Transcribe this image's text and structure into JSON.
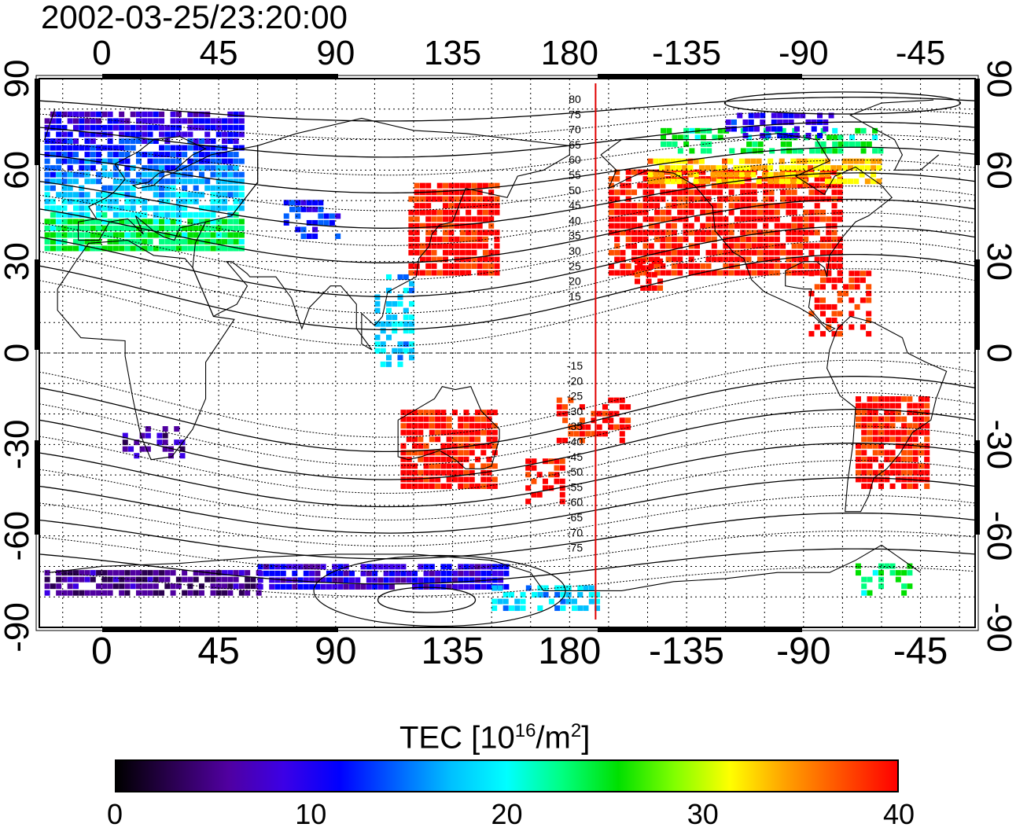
{
  "title": "2002-03-25/23:20:00",
  "map": {
    "projection": "equirectangular",
    "lon_range": [
      -24,
      336
    ],
    "lat_range": [
      -90,
      90
    ],
    "top_lon_ticks": [
      "0",
      "45",
      "90",
      "135",
      "180",
      "-135",
      "-90",
      "-45"
    ],
    "bottom_lon_ticks": [
      "0",
      "45",
      "90",
      "135",
      "180",
      "-135",
      "-90",
      "-45"
    ],
    "left_lat_ticks": [
      "90",
      "60",
      "30",
      "0",
      "-30",
      "-60",
      "-90"
    ],
    "right_lat_ticks": [
      "90",
      "60",
      "30",
      "0",
      "-30",
      "-60",
      "-90"
    ],
    "grid": true,
    "terminator_line_color": "#e00000",
    "terminator_lon": 190,
    "contour_labels_north": [
      "80",
      "75",
      "70",
      "65",
      "60",
      "55",
      "50",
      "45",
      "40",
      "35",
      "30",
      "25",
      "20",
      "15"
    ],
    "contour_labels_south": [
      "-15",
      "-20",
      "-25",
      "-30",
      "-35",
      "-40",
      "-45",
      "-50",
      "-55",
      "-60",
      "-65",
      "-70",
      "-75"
    ]
  },
  "colorbar": {
    "label_main": "TEC  [10",
    "label_exp": "16",
    "label_unit": "/m",
    "label_unit_exp": "2",
    "label_close": "]",
    "min": 0,
    "max": 40,
    "ticks": [
      "0",
      "10",
      "20",
      "30",
      "40"
    ],
    "colors": [
      "#000000",
      "#2a0050",
      "#5000a0",
      "#3c00e6",
      "#0000ff",
      "#0060ff",
      "#00c0ff",
      "#00ffff",
      "#00ff80",
      "#00e000",
      "#80ff00",
      "#ffff00",
      "#ffa000",
      "#ff5000",
      "#ff0000"
    ]
  },
  "tec_regions": [
    {
      "lon": [
        -22,
        55
      ],
      "lat": [
        33,
        78
      ],
      "value": 14,
      "name": "europe"
    },
    {
      "lon": [
        -22,
        55
      ],
      "lat": [
        33,
        42
      ],
      "value": 24
    },
    {
      "lon": [
        70,
        90
      ],
      "lat": [
        37,
        50
      ],
      "value": 12
    },
    {
      "lon": [
        118,
        152
      ],
      "lat": [
        25,
        55
      ],
      "value": 40
    },
    {
      "lon": [
        195,
        285
      ],
      "lat": [
        25,
        60
      ],
      "value": 40
    },
    {
      "lon": [
        210,
        300
      ],
      "lat": [
        55,
        63
      ],
      "value": 33
    },
    {
      "lon": [
        215,
        300
      ],
      "lat": [
        65,
        72
      ],
      "value": 24
    },
    {
      "lon": [
        240,
        280
      ],
      "lat": [
        70,
        78
      ],
      "value": 10
    },
    {
      "lon": [
        272,
        295
      ],
      "lat": [
        5,
        25
      ],
      "value": 40
    },
    {
      "lon": [
        290,
        318
      ],
      "lat": [
        -45,
        -15
      ],
      "value": 40
    },
    {
      "lon": [
        115,
        152
      ],
      "lat": [
        -45,
        -20
      ],
      "value": 40
    },
    {
      "lon": [
        163,
        178
      ],
      "lat": [
        -50,
        -35
      ],
      "value": 40
    },
    {
      "lon": [
        175,
        202
      ],
      "lat": [
        -30,
        -15
      ],
      "value": 40
    },
    {
      "lon": [
        205,
        215
      ],
      "lat": [
        20,
        30
      ],
      "value": 40
    },
    {
      "lon": [
        290,
        310
      ],
      "lat": [
        -80,
        -70
      ],
      "value": 24
    },
    {
      "lon": [
        -22,
        60
      ],
      "lat": [
        -80,
        -72
      ],
      "value": 5
    },
    {
      "lon": [
        60,
        155
      ],
      "lat": [
        -78,
        -70
      ],
      "value": 9
    },
    {
      "lon": [
        150,
        190
      ],
      "lat": [
        -85,
        -78
      ],
      "value": 18
    },
    {
      "lon": [
        8,
        30
      ],
      "lat": [
        -35,
        -25
      ],
      "value": 6
    },
    {
      "lon": [
        105,
        120
      ],
      "lat": [
        -5,
        25
      ],
      "value": 18
    }
  ]
}
